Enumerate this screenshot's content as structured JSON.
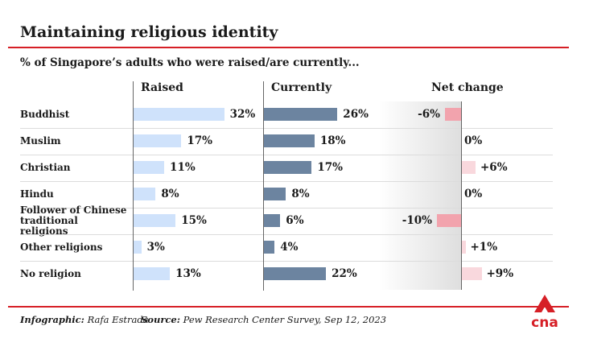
{
  "header": {
    "title": "Maintaining religious identity",
    "subtitle": "% of Singapore’s adults who were raised/are currently..."
  },
  "colors": {
    "accent": "#d61f26",
    "raised_bar": "#cfe2fb",
    "currently_bar": "#6c84a0",
    "net_negative": "#f2a3ad",
    "net_positive": "#f9d8dd"
  },
  "chart_data": {
    "type": "bar",
    "columns": [
      "Raised",
      "Currently",
      "Net change"
    ],
    "categories": [
      "Buddhist",
      "Muslim",
      "Christian",
      "Hindu",
      "Follower of Chinese traditional religions",
      "Other religions",
      "No religion"
    ],
    "series": [
      {
        "name": "Raised",
        "values": [
          32,
          17,
          11,
          8,
          15,
          3,
          13
        ],
        "labels": [
          "32%",
          "17%",
          "11%",
          "8%",
          "15%",
          "3%",
          "13%"
        ]
      },
      {
        "name": "Currently",
        "values": [
          26,
          18,
          17,
          8,
          6,
          4,
          22
        ],
        "labels": [
          "26%",
          "18%",
          "17%",
          "8%",
          "6%",
          "4%",
          "22%"
        ]
      },
      {
        "name": "Net change",
        "values": [
          -6,
          0,
          6,
          0,
          -10,
          1,
          9
        ],
        "labels": [
          "-6%",
          "0%",
          "+6%",
          "0%",
          "-10%",
          "+1%",
          "+9%"
        ]
      }
    ]
  },
  "footer": {
    "credit_label": "Infographic:",
    "credit_value": "Rafa Estrada",
    "source_label": "Source:",
    "source_value": "Pew Research Center Survey, Sep 12, 2023",
    "logo_text": "cna"
  }
}
